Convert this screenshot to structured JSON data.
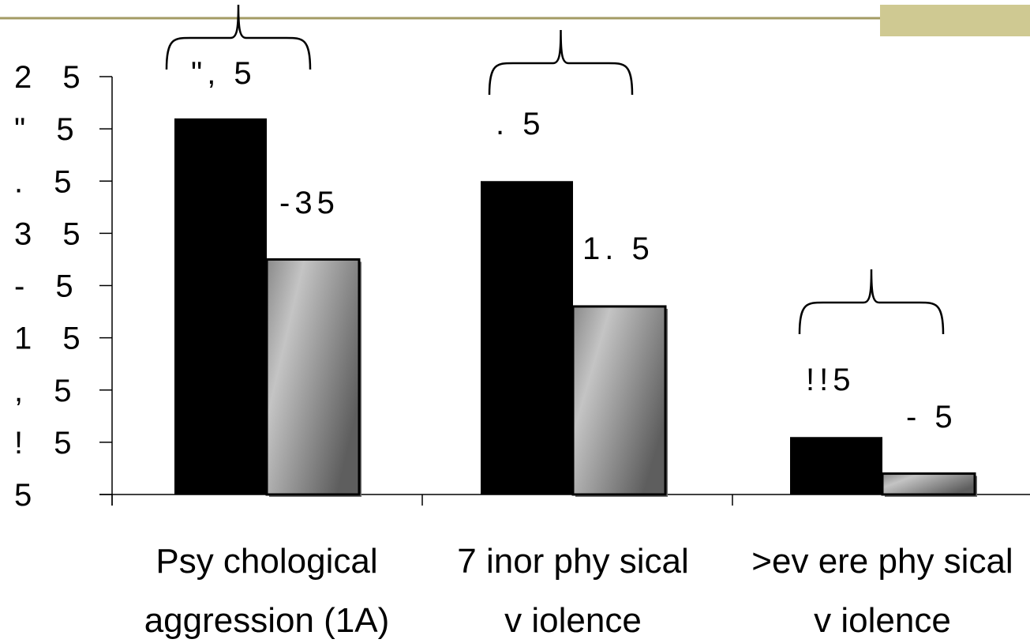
{
  "chart_data": {
    "type": "bar",
    "title": "",
    "xlabel": "",
    "ylabel": "",
    "ylim": [
      0,
      80
    ],
    "y_tick_labels": [
      "5",
      "! 5",
      ", 5",
      "1 5",
      "- 5",
      "3 5",
      ". 5",
      "\" 5",
      "2 5"
    ],
    "categories": [
      {
        "line1": "Psy chological",
        "line2": "aggression (1A)"
      },
      {
        "line1": "7 inor phy sical",
        "line2": "v iolence"
      },
      {
        "line1": ">ev ere phy sical",
        "line2": "v iolence"
      }
    ],
    "series": [
      {
        "values": [
          72,
          60,
          11
        ],
        "color": "#000000"
      },
      {
        "values": [
          45,
          36,
          4
        ],
        "color": "#8c8c8c"
      }
    ],
    "data_labels": [
      {
        "text": "\", 5",
        "category": 0
      },
      {
        "text": "-35",
        "category": 0
      },
      {
        "text": ". 5",
        "category": 1
      },
      {
        "text": "1. 5",
        "category": 1
      },
      {
        "text": "!!5",
        "category": 2
      },
      {
        "text": "- 5",
        "category": 2
      }
    ],
    "accent_color": "#a39b64",
    "accent_block_color": "#cfc992"
  }
}
